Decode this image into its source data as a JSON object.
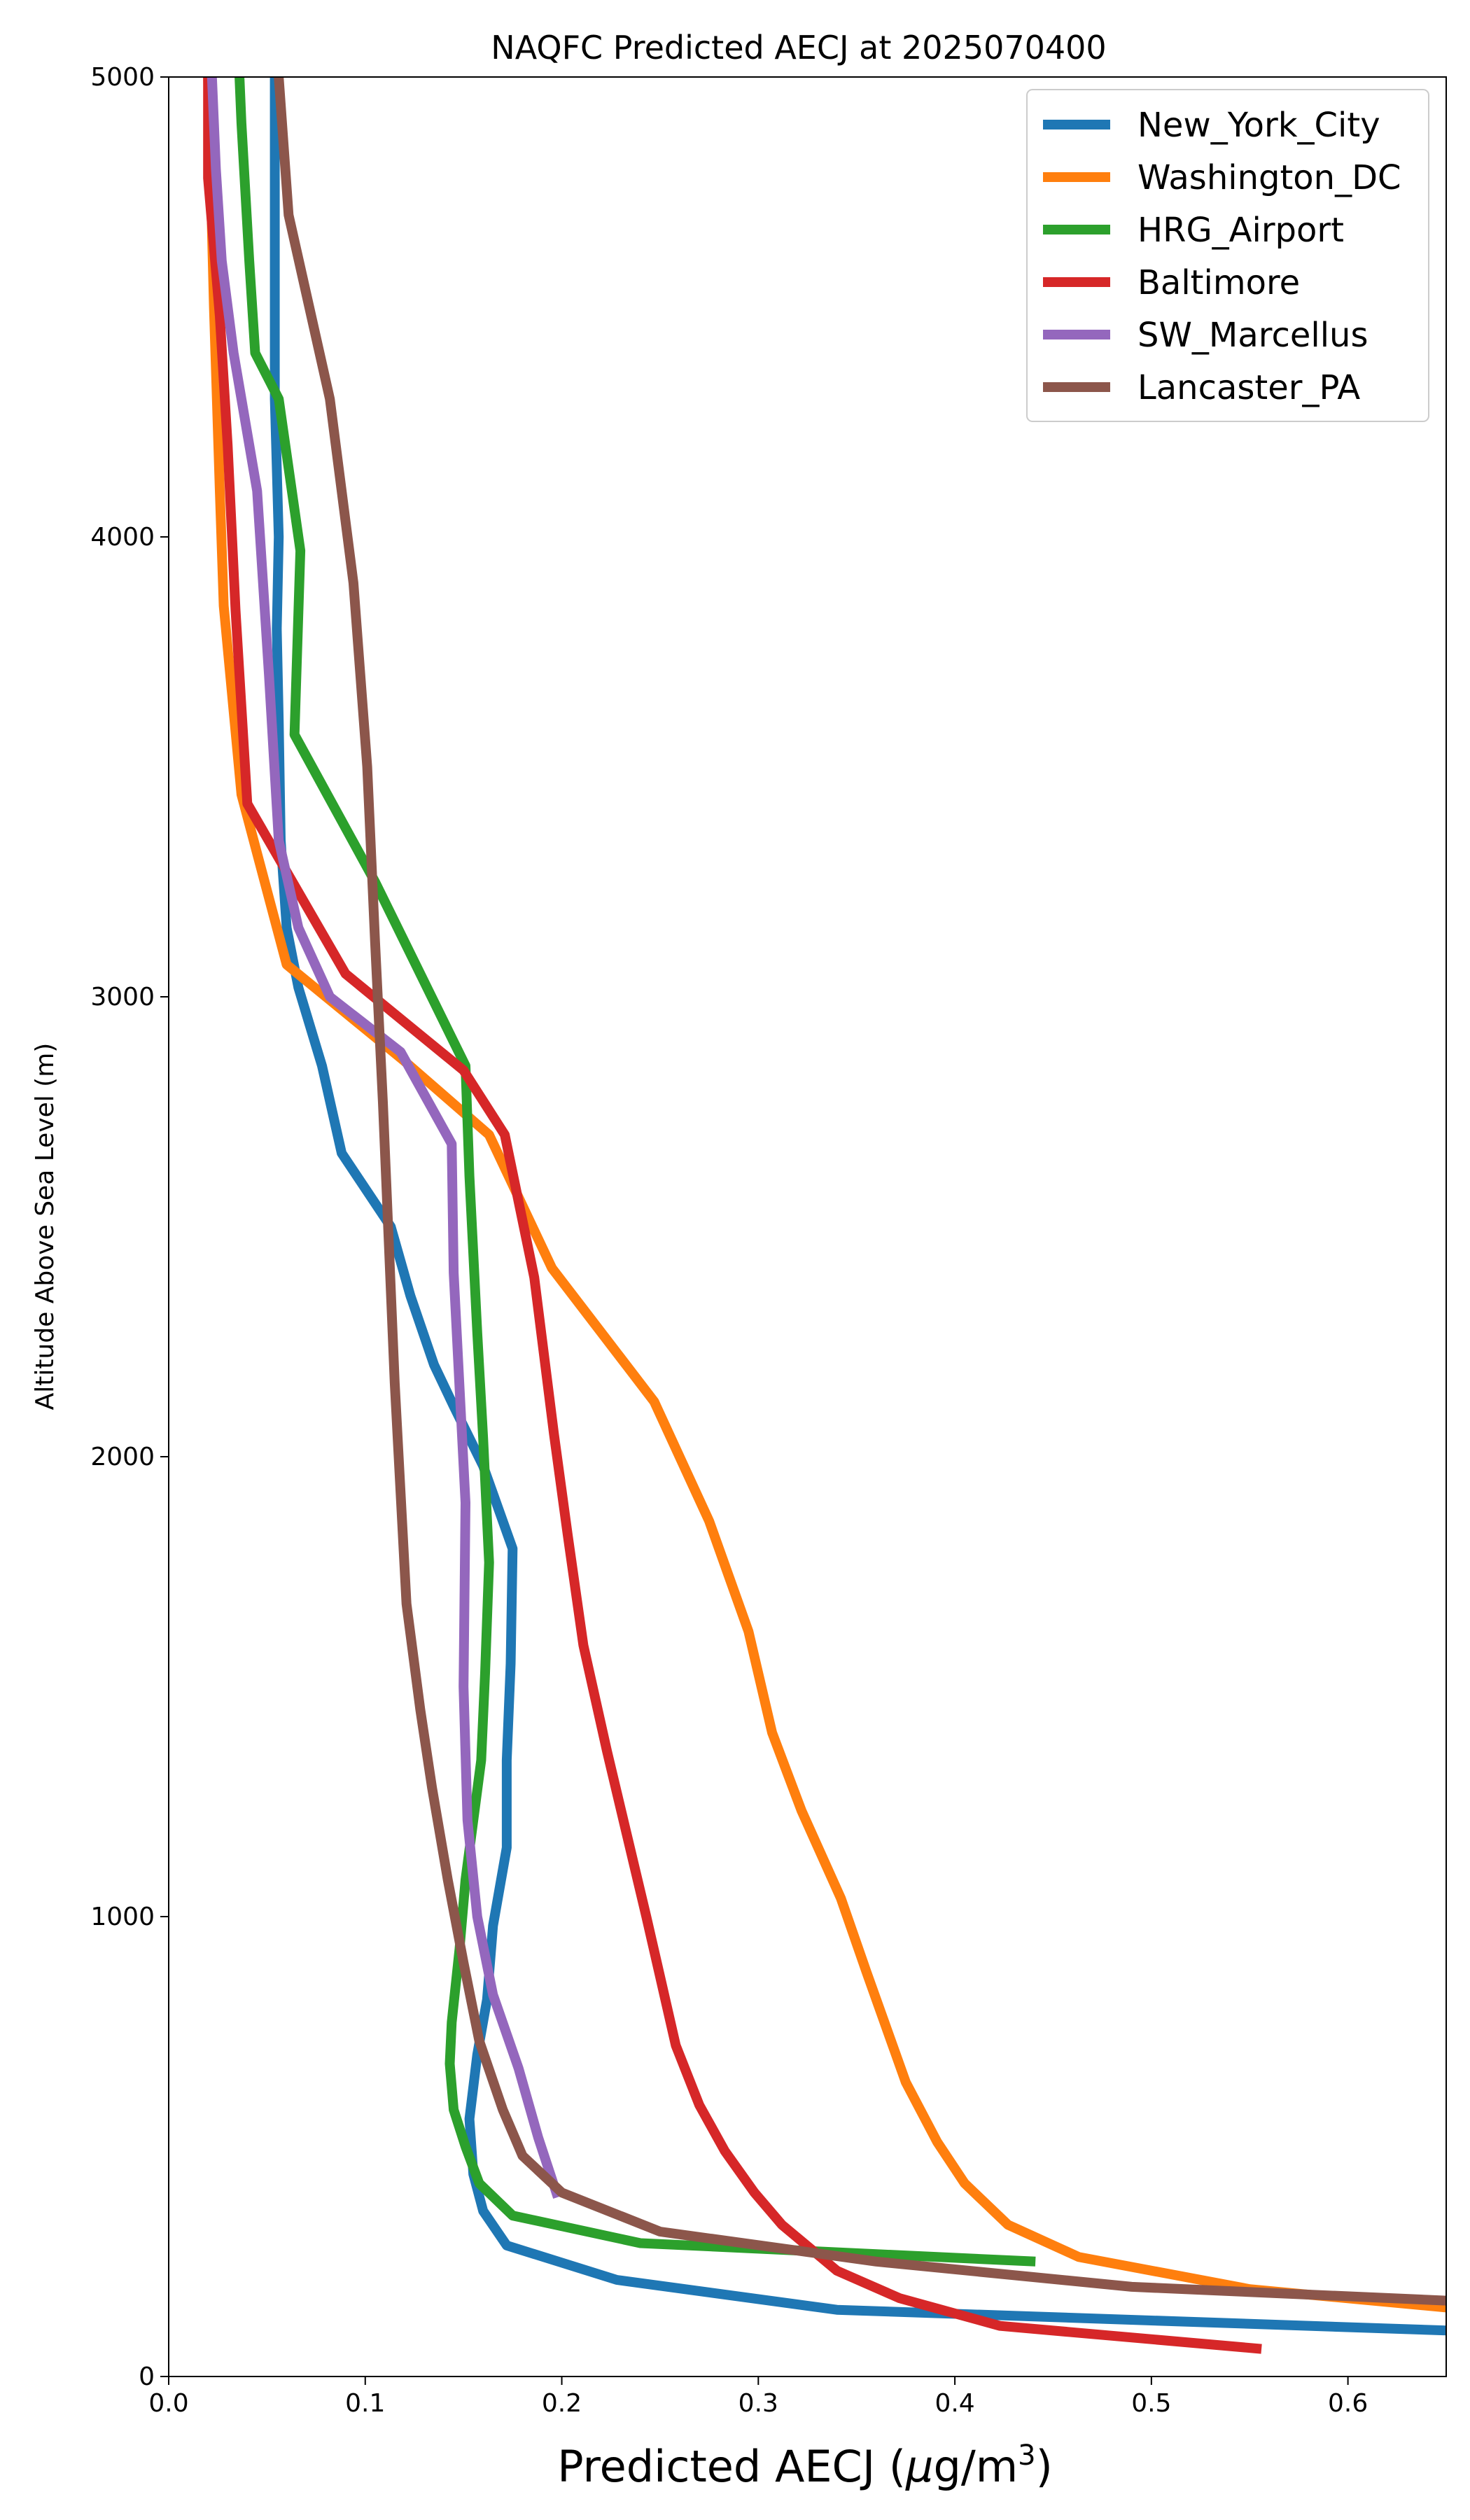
{
  "chart_data": {
    "type": "line",
    "title": "NAQFC Predicted AECJ at 2025070400",
    "xlabel": "Predicted AECJ (",
    "xlabel_mu": "μ",
    "xlabel_unit": "g/m",
    "xlabel_sup": "3",
    "xlabel_end": ")",
    "ylabel": "Altitude Above Sea Level (m)",
    "xlim": [
      0,
      0.65
    ],
    "ylim": [
      0,
      5000
    ],
    "xticks": [
      0.0,
      0.1,
      0.2,
      0.3,
      0.4,
      0.5,
      0.6
    ],
    "xtick_labels": [
      "0.0",
      "0.1",
      "0.2",
      "0.3",
      "0.4",
      "0.5",
      "0.6"
    ],
    "yticks": [
      0,
      1000,
      2000,
      3000,
      4000,
      5000
    ],
    "ytick_labels": [
      "0",
      "1000",
      "2000",
      "3000",
      "4000",
      "5000"
    ],
    "grid": false,
    "legend_position": "top-right",
    "series": [
      {
        "name": "New_York_City",
        "color": "#1f77b4",
        "points": [
          [
            0.65,
            100
          ],
          [
            0.34,
            145
          ],
          [
            0.228,
            210
          ],
          [
            0.172,
            285
          ],
          [
            0.16,
            360
          ],
          [
            0.155,
            440
          ],
          [
            0.153,
            560
          ],
          [
            0.157,
            700
          ],
          [
            0.162,
            820
          ],
          [
            0.165,
            980
          ],
          [
            0.172,
            1150
          ],
          [
            0.172,
            1340
          ],
          [
            0.174,
            1550
          ],
          [
            0.175,
            1800
          ],
          [
            0.16,
            1980
          ],
          [
            0.145,
            2110
          ],
          [
            0.135,
            2200
          ],
          [
            0.123,
            2350
          ],
          [
            0.113,
            2500
          ],
          [
            0.088,
            2660
          ],
          [
            0.078,
            2850
          ],
          [
            0.066,
            3020
          ],
          [
            0.06,
            3150
          ],
          [
            0.057,
            3340
          ],
          [
            0.056,
            3600
          ],
          [
            0.055,
            3800
          ],
          [
            0.056,
            4000
          ],
          [
            0.054,
            4300
          ],
          [
            0.054,
            4700
          ],
          [
            0.054,
            5000
          ]
        ]
      },
      {
        "name": "Washington_DC",
        "color": "#ff7f0e",
        "points": [
          [
            0.65,
            150
          ],
          [
            0.55,
            190
          ],
          [
            0.463,
            260
          ],
          [
            0.427,
            330
          ],
          [
            0.405,
            420
          ],
          [
            0.391,
            510
          ],
          [
            0.375,
            640
          ],
          [
            0.355,
            880
          ],
          [
            0.342,
            1040
          ],
          [
            0.322,
            1230
          ],
          [
            0.307,
            1400
          ],
          [
            0.295,
            1620
          ],
          [
            0.275,
            1860
          ],
          [
            0.247,
            2120
          ],
          [
            0.195,
            2410
          ],
          [
            0.163,
            2700
          ],
          [
            0.12,
            2860
          ],
          [
            0.06,
            3070
          ],
          [
            0.037,
            3440
          ],
          [
            0.028,
            3850
          ],
          [
            0.026,
            4100
          ],
          [
            0.023,
            4500
          ],
          [
            0.02,
            5000
          ]
        ]
      },
      {
        "name": "HRG_Airport",
        "color": "#2ca02c",
        "points": [
          [
            0.441,
            250
          ],
          [
            0.24,
            290
          ],
          [
            0.175,
            350
          ],
          [
            0.158,
            420
          ],
          [
            0.151,
            500
          ],
          [
            0.145,
            580
          ],
          [
            0.143,
            680
          ],
          [
            0.144,
            770
          ],
          [
            0.148,
            930
          ],
          [
            0.151,
            1080
          ],
          [
            0.159,
            1340
          ],
          [
            0.161,
            1530
          ],
          [
            0.163,
            1770
          ],
          [
            0.16,
            2040
          ],
          [
            0.157,
            2270
          ],
          [
            0.153,
            2610
          ],
          [
            0.151,
            2850
          ],
          [
            0.105,
            3250
          ],
          [
            0.064,
            3570
          ],
          [
            0.067,
            3970
          ],
          [
            0.056,
            4300
          ],
          [
            0.044,
            4400
          ],
          [
            0.041,
            4600
          ],
          [
            0.037,
            4900
          ],
          [
            0.036,
            5000
          ]
        ]
      },
      {
        "name": "Baltimore",
        "color": "#d62728",
        "points": [
          [
            0.556,
            60
          ],
          [
            0.423,
            110
          ],
          [
            0.372,
            170
          ],
          [
            0.34,
            230
          ],
          [
            0.312,
            330
          ],
          [
            0.298,
            400
          ],
          [
            0.283,
            490
          ],
          [
            0.27,
            590
          ],
          [
            0.258,
            720
          ],
          [
            0.25,
            870
          ],
          [
            0.243,
            1000
          ],
          [
            0.233,
            1180
          ],
          [
            0.223,
            1360
          ],
          [
            0.211,
            1590
          ],
          [
            0.203,
            1830
          ],
          [
            0.196,
            2050
          ],
          [
            0.186,
            2390
          ],
          [
            0.171,
            2700
          ],
          [
            0.15,
            2840
          ],
          [
            0.09,
            3050
          ],
          [
            0.04,
            3420
          ],
          [
            0.034,
            3840
          ],
          [
            0.03,
            4200
          ],
          [
            0.026,
            4480
          ],
          [
            0.02,
            4780
          ],
          [
            0.02,
            5000
          ]
        ]
      },
      {
        "name": "SW_Marcellus",
        "color": "#9467bd",
        "points": [
          [
            0.198,
            390
          ],
          [
            0.188,
            520
          ],
          [
            0.178,
            670
          ],
          [
            0.165,
            830
          ],
          [
            0.157,
            1000
          ],
          [
            0.152,
            1210
          ],
          [
            0.15,
            1500
          ],
          [
            0.151,
            1900
          ],
          [
            0.148,
            2150
          ],
          [
            0.145,
            2400
          ],
          [
            0.144,
            2680
          ],
          [
            0.118,
            2880
          ],
          [
            0.082,
            3000
          ],
          [
            0.066,
            3150
          ],
          [
            0.056,
            3340
          ],
          [
            0.051,
            3700
          ],
          [
            0.045,
            4100
          ],
          [
            0.033,
            4400
          ],
          [
            0.027,
            4600
          ],
          [
            0.024,
            4800
          ],
          [
            0.022,
            5000
          ]
        ]
      },
      {
        "name": "Lancaster_PA",
        "color": "#8c564b",
        "points": [
          [
            0.65,
            165
          ],
          [
            0.49,
            195
          ],
          [
            0.36,
            250
          ],
          [
            0.25,
            315
          ],
          [
            0.2,
            400
          ],
          [
            0.18,
            480
          ],
          [
            0.17,
            580
          ],
          [
            0.158,
            730
          ],
          [
            0.15,
            900
          ],
          [
            0.142,
            1080
          ],
          [
            0.134,
            1280
          ],
          [
            0.128,
            1450
          ],
          [
            0.121,
            1680
          ],
          [
            0.115,
            2160
          ],
          [
            0.109,
            2770
          ],
          [
            0.105,
            3120
          ],
          [
            0.101,
            3500
          ],
          [
            0.094,
            3900
          ],
          [
            0.082,
            4300
          ],
          [
            0.061,
            4700
          ],
          [
            0.056,
            5000
          ]
        ]
      }
    ]
  }
}
